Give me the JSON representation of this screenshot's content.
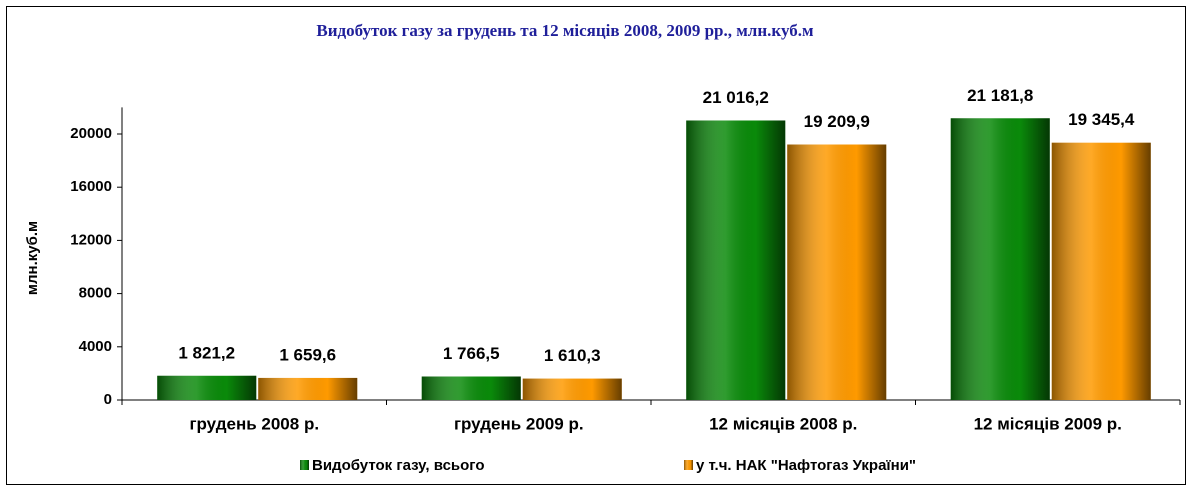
{
  "chart_data": {
    "type": "bar",
    "title": "Видобуток газу за грудень та 12  місяців 2008, 2009 рр.,  млн.куб.м",
    "y_label": "млн.куб.м",
    "categories": [
      "грудень 2008 р.",
      "грудень 2009 р.",
      "12 місяців 2008 р.",
      "12 місяців 2009 р."
    ],
    "series": [
      {
        "name": "Видобуток газу, всього",
        "color": "#0a8a0a",
        "values": [
          1821.2,
          1766.5,
          21016.2,
          21181.8
        ],
        "value_labels": [
          "1 821,2",
          "1 766,5",
          "21 016,2",
          "21 181,8"
        ]
      },
      {
        "name": "у т.ч. НАК \"Нафтогаз України\"",
        "color": "#ff9a00",
        "values": [
          1659.6,
          1610.3,
          19209.9,
          19345.4
        ],
        "value_labels": [
          "1 659,6",
          "1 610,3",
          "19 209,9",
          "19 345,4"
        ]
      }
    ],
    "ylim": [
      0,
      22000
    ],
    "yticks": [
      0,
      4000,
      8000,
      12000,
      16000,
      20000
    ],
    "grid": false,
    "legend": "bottom"
  }
}
